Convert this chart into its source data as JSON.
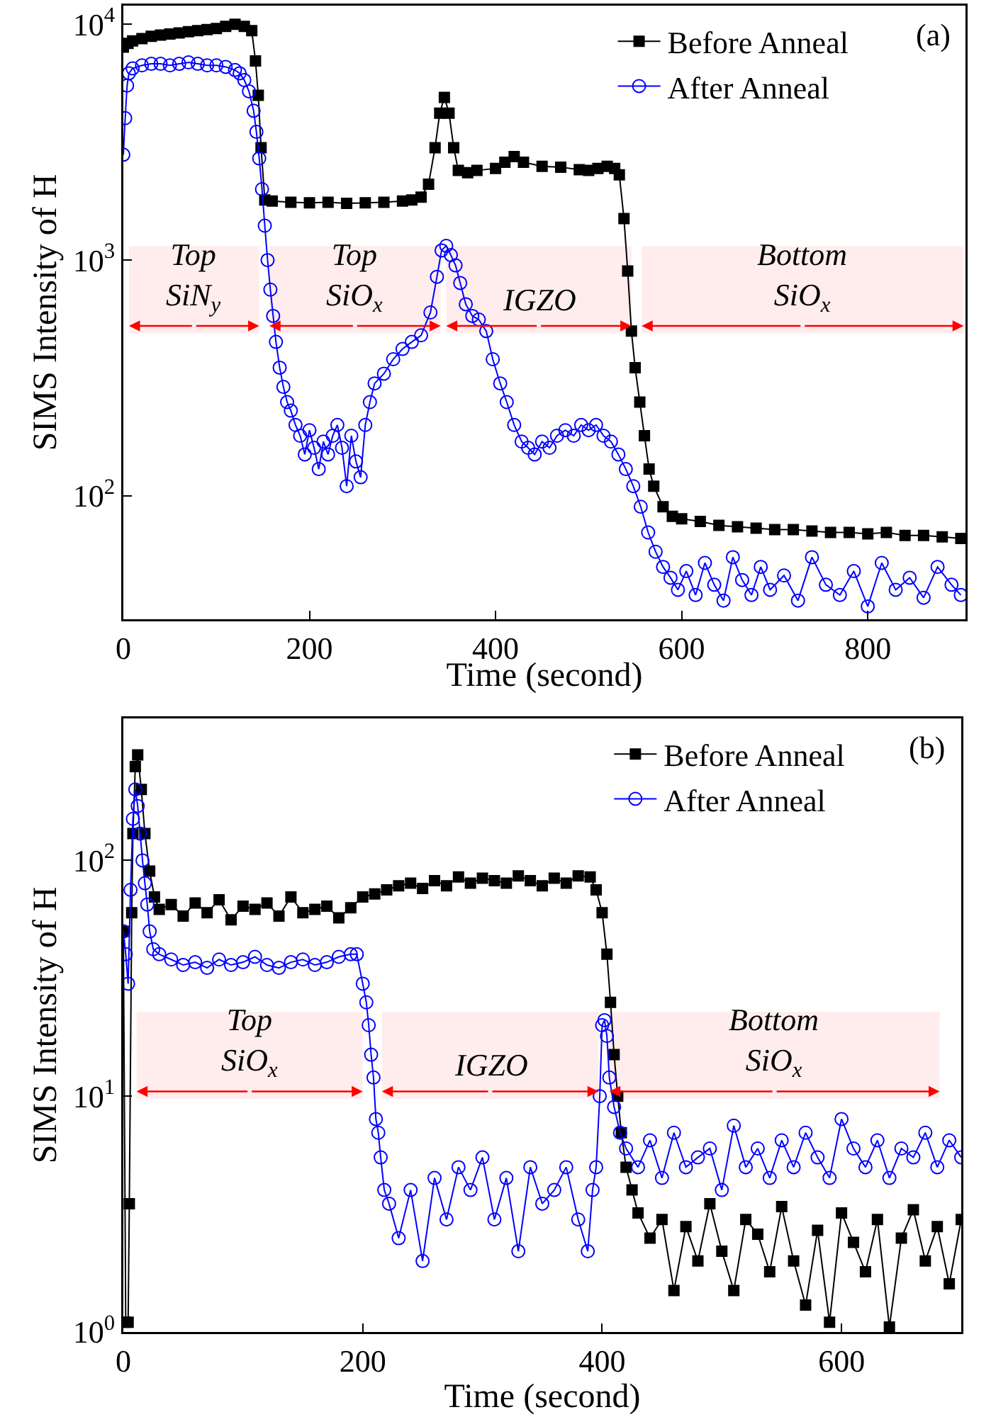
{
  "chart_data": [
    {
      "type": "line",
      "xlabel": "Time (second)",
      "ylabel": "SIMS Intensity of H",
      "annotations": [
        "(a)"
      ],
      "log": "y",
      "legend": "top right",
      "grid": false,
      "xlim": [
        0,
        905
      ],
      "xticks": [
        0,
        200,
        400,
        600,
        800
      ],
      "ylim": [
        30,
        12000
      ],
      "yticks": [
        {
          "value": 100,
          "label": "10$^{2}$"
        },
        {
          "value": 1000,
          "label": "10$^{3}$"
        },
        {
          "value": 10000,
          "label": "10$^{4}$"
        }
      ],
      "bands": [
        {
          "axis": "x",
          "from": 6,
          "to": 146,
          "label": "Top\nSiN$_{y}$",
          "color": "#ff0000"
        },
        {
          "axis": "x",
          "from": 157,
          "to": 341,
          "label": "Top\nSiO$_{x}$",
          "color": "#ff0000"
        },
        {
          "axis": "x",
          "from": 347,
          "to": 546,
          "label": "IGZO",
          "color": "#ff0000"
        },
        {
          "axis": "x",
          "from": 557,
          "to": 903,
          "label": "Bottom\nSiO$_{x}$",
          "color": "#ff0000"
        }
      ],
      "series": [
        {
          "name": "Before Anneal",
          "color": "#000000",
          "marker": "square",
          "x": [
            0,
            5,
            10,
            20,
            30,
            40,
            50,
            60,
            70,
            80,
            90,
            100,
            110,
            120,
            130,
            138,
            142,
            145,
            148,
            152,
            160,
            180,
            200,
            220,
            240,
            260,
            280,
            300,
            310,
            320,
            328,
            335,
            340,
            345,
            350,
            355,
            360,
            370,
            380,
            400,
            410,
            420,
            430,
            450,
            470,
            490,
            500,
            510,
            520,
            528,
            533,
            538,
            542,
            546,
            550,
            555,
            560,
            565,
            570,
            580,
            590,
            600,
            620,
            640,
            660,
            680,
            700,
            720,
            740,
            760,
            780,
            800,
            820,
            840,
            860,
            880,
            900
          ],
          "values": [
            8000,
            8300,
            8500,
            8700,
            8900,
            9000,
            9100,
            9200,
            9300,
            9400,
            9500,
            9600,
            9800,
            10000,
            9800,
            9400,
            7000,
            5000,
            3000,
            1800,
            1780,
            1760,
            1750,
            1760,
            1740,
            1750,
            1760,
            1780,
            1800,
            1850,
            2100,
            3000,
            4200,
            4900,
            4200,
            3000,
            2400,
            2350,
            2400,
            2450,
            2600,
            2750,
            2600,
            2500,
            2480,
            2420,
            2400,
            2450,
            2500,
            2450,
            2300,
            1500,
            900,
            500,
            350,
            250,
            180,
            130,
            110,
            90,
            82,
            80,
            78,
            75,
            74,
            73,
            72,
            72,
            71,
            70,
            70,
            69,
            70,
            68,
            68,
            67,
            66
          ]
        },
        {
          "name": "After Anneal",
          "color": "#0000ff",
          "marker": "circle",
          "x": [
            0,
            2,
            4,
            6,
            10,
            20,
            30,
            40,
            50,
            60,
            70,
            80,
            90,
            100,
            110,
            120,
            125,
            130,
            135,
            140,
            143,
            146,
            149,
            152,
            155,
            158,
            161,
            164,
            168,
            172,
            176,
            180,
            185,
            190,
            195,
            200,
            205,
            210,
            215,
            220,
            225,
            230,
            235,
            240,
            245,
            250,
            255,
            260,
            265,
            270,
            280,
            290,
            300,
            310,
            320,
            330,
            337,
            342,
            347,
            352,
            357,
            362,
            368,
            375,
            382,
            390,
            397,
            405,
            412,
            420,
            428,
            435,
            442,
            450,
            458,
            466,
            475,
            484,
            492,
            500,
            508,
            516,
            524,
            532,
            540,
            548,
            556,
            564,
            572,
            580,
            588,
            596,
            605,
            615,
            625,
            635,
            645,
            655,
            665,
            675,
            685,
            695,
            710,
            725,
            740,
            755,
            770,
            785,
            800,
            815,
            830,
            845,
            860,
            875,
            890,
            900
          ],
          "values": [
            2800,
            4000,
            5500,
            6200,
            6500,
            6700,
            6800,
            6800,
            6700,
            6800,
            6900,
            6800,
            6700,
            6700,
            6600,
            6400,
            6200,
            5800,
            5200,
            4300,
            3500,
            2700,
            2000,
            1400,
            1000,
            750,
            580,
            450,
            350,
            290,
            250,
            230,
            200,
            180,
            150,
            190,
            160,
            130,
            170,
            150,
            180,
            200,
            160,
            110,
            180,
            140,
            120,
            200,
            250,
            300,
            330,
            380,
            420,
            450,
            480,
            600,
            850,
            1100,
            1150,
            1050,
            950,
            800,
            650,
            580,
            560,
            500,
            380,
            300,
            250,
            200,
            170,
            160,
            150,
            170,
            160,
            180,
            190,
            180,
            200,
            190,
            200,
            180,
            170,
            150,
            130,
            110,
            90,
            70,
            58,
            50,
            45,
            40,
            48,
            38,
            52,
            42,
            36,
            55,
            44,
            38,
            50,
            40,
            46,
            36,
            55,
            42,
            38,
            48,
            34,
            52,
            40,
            45,
            37,
            50,
            42,
            38
          ]
        }
      ]
    },
    {
      "type": "line",
      "xlabel": "Time (second)",
      "ylabel": "SIMS Intensity of H",
      "annotations": [
        "(b)"
      ],
      "log": "y",
      "legend": "top right",
      "grid": false,
      "xlim": [
        0,
        700
      ],
      "xticks": [
        0,
        200,
        400,
        600
      ],
      "ylim": [
        1,
        400
      ],
      "yticks": [
        {
          "value": 1,
          "label": "10$^{0}$"
        },
        {
          "value": 10,
          "label": "10$^{1}$"
        },
        {
          "value": 100,
          "label": "10$^{2}$"
        }
      ],
      "bands": [
        {
          "axis": "x",
          "from": 11,
          "to": 200,
          "label": "Top\nSiO$_{x}$",
          "color": "#ff0000"
        },
        {
          "axis": "x",
          "from": 216,
          "to": 397,
          "label": "IGZO",
          "color": "#ff0000"
        },
        {
          "axis": "x",
          "from": 406,
          "to": 682,
          "label": "Bottom\nSiO$_{x}$",
          "color": "#ff0000"
        }
      ],
      "series": [
        {
          "name": "Before Anneal",
          "color": "#000000",
          "marker": "square",
          "x": [
            0,
            2,
            4,
            5,
            7,
            8,
            10,
            12,
            15,
            18,
            22,
            26,
            30,
            40,
            50,
            60,
            70,
            80,
            90,
            100,
            110,
            120,
            130,
            140,
            150,
            160,
            170,
            180,
            190,
            200,
            210,
            220,
            230,
            240,
            250,
            260,
            270,
            280,
            290,
            300,
            310,
            320,
            330,
            340,
            350,
            360,
            370,
            380,
            390,
            395,
            400,
            404,
            407,
            410,
            413,
            416,
            420,
            425,
            430,
            440,
            450,
            460,
            470,
            480,
            490,
            500,
            510,
            520,
            530,
            540,
            550,
            560,
            570,
            580,
            590,
            600,
            610,
            620,
            630,
            640,
            650,
            660,
            670,
            680,
            690,
            700
          ],
          "values": [
            50,
            1.1,
            1.1,
            3.5,
            60,
            130,
            250,
            280,
            200,
            130,
            90,
            70,
            62,
            65,
            58,
            66,
            60,
            68,
            56,
            64,
            62,
            66,
            58,
            70,
            60,
            62,
            64,
            57,
            63,
            70,
            72,
            75,
            78,
            80,
            76,
            82,
            78,
            85,
            80,
            84,
            82,
            80,
            86,
            82,
            78,
            84,
            80,
            86,
            85,
            75,
            60,
            40,
            25,
            15,
            10,
            7,
            5,
            4,
            3.2,
            2.5,
            3,
            1.5,
            2.8,
            2,
            3.5,
            2.2,
            1.5,
            3,
            2.6,
            1.8,
            3.4,
            2,
            1.3,
            2.7,
            1.1,
            3.2,
            2.4,
            1.8,
            3,
            1.05,
            2.5,
            3.3,
            2,
            2.8,
            1.6,
            3
          ]
        },
        {
          "name": "After Anneal",
          "color": "#0000ff",
          "marker": "circle",
          "x": [
            0,
            2,
            4,
            6,
            8,
            10,
            12,
            14,
            16,
            18,
            20,
            22,
            25,
            30,
            40,
            50,
            60,
            70,
            80,
            90,
            100,
            110,
            120,
            130,
            140,
            150,
            160,
            170,
            180,
            190,
            195,
            200,
            203,
            205,
            207,
            209,
            211,
            213,
            215,
            218,
            222,
            230,
            240,
            250,
            260,
            270,
            280,
            290,
            300,
            310,
            320,
            330,
            340,
            350,
            360,
            370,
            380,
            388,
            392,
            395,
            398,
            400,
            402,
            404,
            406,
            410,
            415,
            420,
            430,
            440,
            450,
            460,
            470,
            480,
            490,
            500,
            510,
            520,
            530,
            540,
            550,
            560,
            570,
            580,
            590,
            600,
            610,
            620,
            630,
            640,
            650,
            660,
            670,
            680,
            690,
            700
          ],
          "values": [
            50,
            40,
            30,
            75,
            150,
            200,
            170,
            130,
            100,
            80,
            65,
            50,
            42,
            40,
            38,
            36,
            37,
            35,
            38,
            36,
            37,
            39,
            36,
            35,
            37,
            38,
            36,
            37,
            39,
            40,
            40,
            30,
            25,
            20,
            15,
            12,
            8,
            7,
            5.5,
            4,
            3.5,
            2.5,
            4,
            2,
            4.5,
            3,
            5,
            4,
            5.5,
            3,
            4.5,
            2.2,
            5,
            3.5,
            4,
            5,
            3,
            2.2,
            4,
            5,
            10,
            20,
            21,
            18,
            12,
            9,
            7,
            6,
            5,
            6.5,
            4.5,
            7,
            5,
            5.5,
            6,
            4,
            7.5,
            5,
            6,
            4.5,
            6.5,
            5,
            7,
            5.5,
            4.5,
            8,
            6,
            5,
            6.5,
            4.5,
            6,
            5.5,
            7,
            5,
            6.5,
            5.5
          ]
        }
      ]
    }
  ]
}
